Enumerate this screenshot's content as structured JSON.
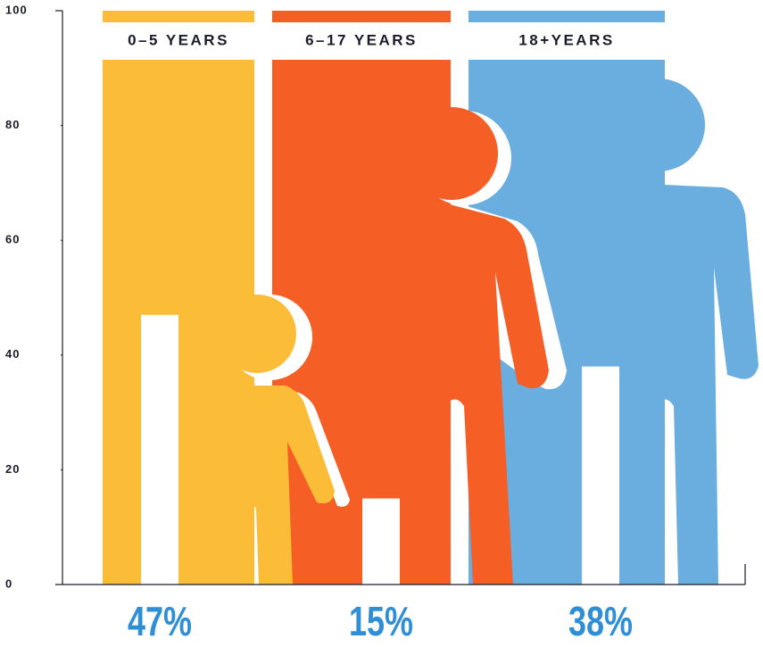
{
  "chart_data": {
    "type": "bar",
    "categories": [
      "0–5 YEARS",
      "6–17 YEARS",
      "18+YEARS"
    ],
    "values": [
      47,
      15,
      38
    ],
    "value_labels": [
      "47%",
      "15%",
      "38%"
    ],
    "colors": [
      "#fbbd37",
      "#f55e25",
      "#6aaee0"
    ],
    "bar_color": "#ffffff",
    "ylim": [
      0,
      100
    ],
    "yticks": [
      0,
      20,
      40,
      60,
      80,
      100
    ],
    "grid": false
  }
}
